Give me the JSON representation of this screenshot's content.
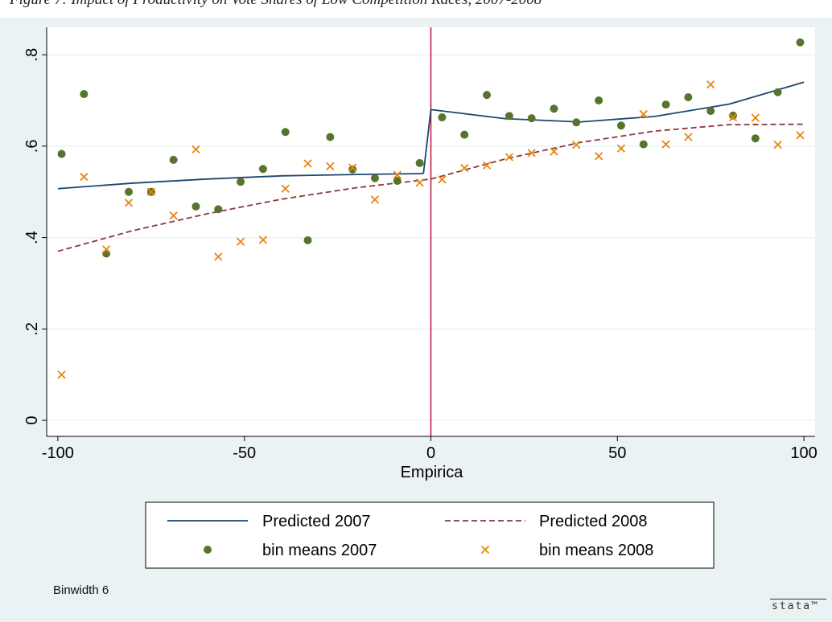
{
  "caption": "Figure 7: Impact of Productivity on Vote Shares of Low Competition Races, 2007-2008",
  "chart_data": {
    "type": "scatter",
    "xlabel": "Empirica",
    "ylabel": "",
    "xlim": [
      -103,
      103
    ],
    "ylim": [
      -0.035,
      0.86
    ],
    "xticks": [
      -100,
      -50,
      0,
      50,
      100
    ],
    "xtick_labels": [
      "-100",
      "-50",
      "0",
      "50",
      "100"
    ],
    "yticks": [
      0,
      0.2,
      0.4,
      0.6,
      0.8
    ],
    "ytick_labels": [
      "0",
      ".2",
      ".4",
      ".6",
      ".8"
    ],
    "grid": true,
    "cutoff_line": {
      "x": 0,
      "color": "#c0103c"
    },
    "note": "Binwidth 6",
    "legend_position": "bottom",
    "series": [
      {
        "name": "Predicted 2007",
        "kind": "line",
        "style": "solid",
        "color": "#1a476f",
        "segments": [
          {
            "x": [
              -100,
              -80,
              -60,
              -40,
              -20,
              -2
            ],
            "y": [
              0.507,
              0.519,
              0.528,
              0.535,
              0.538,
              0.54
            ]
          },
          {
            "x": [
              0,
              20,
              40,
              60,
              80,
              100
            ],
            "y": [
              0.68,
              0.66,
              0.653,
              0.665,
              0.692,
              0.74
            ]
          }
        ]
      },
      {
        "name": "Predicted 2008",
        "kind": "line",
        "style": "dashed",
        "color": "#90353b",
        "segments": [
          {
            "x": [
              -100,
              -80,
              -60,
              -40,
              -20,
              0
            ],
            "y": [
              0.37,
              0.415,
              0.452,
              0.484,
              0.509,
              0.528
            ]
          },
          {
            "x": [
              0,
              20,
              40,
              60,
              80,
              100
            ],
            "y": [
              0.528,
              0.572,
              0.608,
              0.633,
              0.647,
              0.648
            ]
          }
        ]
      },
      {
        "name": "bin means 2007",
        "kind": "points",
        "marker": "circle",
        "color": "#55752f",
        "x": [
          -99,
          -93,
          -87,
          -81,
          -75,
          -69,
          -63,
          -57,
          -51,
          -45,
          -39,
          -33,
          -27,
          -21,
          -15,
          -9,
          -3,
          3,
          9,
          15,
          21,
          27,
          33,
          39,
          45,
          51,
          57,
          63,
          69,
          75,
          81,
          87,
          93,
          99
        ],
        "y": [
          0.583,
          0.714,
          0.365,
          0.5,
          0.5,
          0.57,
          0.468,
          0.462,
          0.522,
          0.55,
          0.631,
          0.394,
          0.62,
          0.549,
          0.53,
          0.524,
          0.563,
          0.663,
          0.625,
          0.712,
          0.666,
          0.661,
          0.682,
          0.652,
          0.7,
          0.645,
          0.604,
          0.691,
          0.707,
          0.677,
          0.667,
          0.617,
          0.718,
          0.827
        ]
      },
      {
        "name": "bin means 2008",
        "kind": "points",
        "marker": "x",
        "color": "#e8850c",
        "x": [
          -99,
          -93,
          -87,
          -81,
          -75,
          -69,
          -63,
          -57,
          -51,
          -45,
          -39,
          -33,
          -27,
          -21,
          -15,
          -9,
          -3,
          3,
          9,
          15,
          21,
          27,
          33,
          39,
          45,
          51,
          57,
          63,
          69,
          75,
          81,
          87,
          93,
          99
        ],
        "y": [
          0.1,
          0.533,
          0.374,
          0.476,
          0.5,
          0.448,
          0.593,
          0.358,
          0.391,
          0.395,
          0.507,
          0.562,
          0.556,
          0.553,
          0.483,
          0.537,
          0.52,
          0.527,
          0.552,
          0.558,
          0.576,
          0.585,
          0.588,
          0.603,
          0.578,
          0.595,
          0.67,
          0.604,
          0.62,
          0.735,
          0.663,
          0.662,
          0.603,
          0.624
        ]
      }
    ]
  },
  "logo": {
    "text": "stata™"
  }
}
